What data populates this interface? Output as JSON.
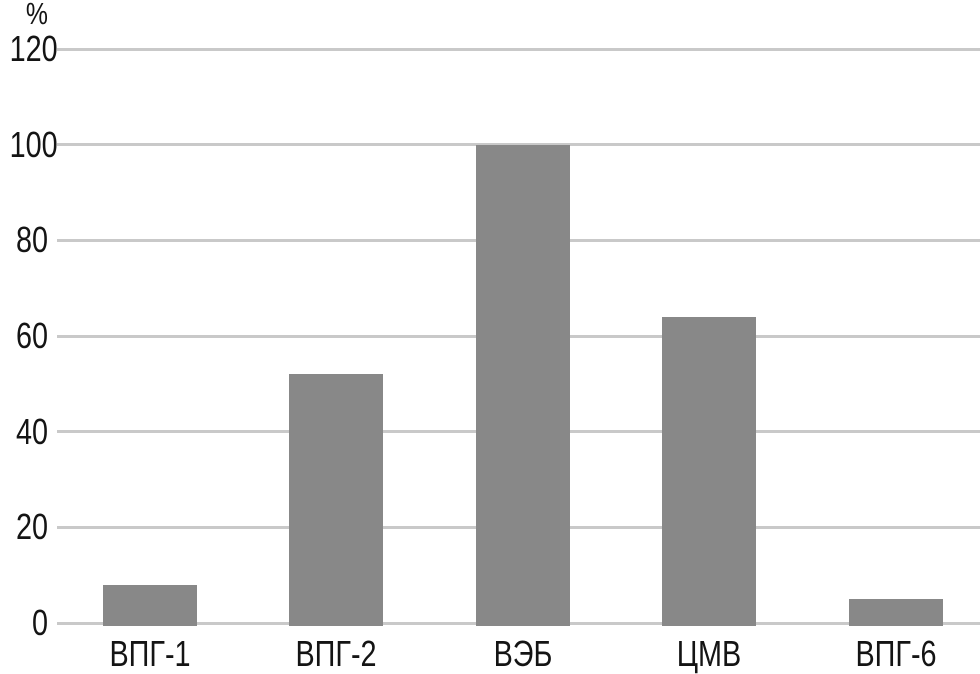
{
  "chart_data": {
    "type": "bar",
    "title": "",
    "xlabel": "",
    "ylabel": "%",
    "categories": [
      "ВПГ-1",
      "ВПГ-2",
      "ВЭБ",
      "ЦМВ",
      "ВПГ-6"
    ],
    "values": [
      8,
      52,
      100,
      64,
      5
    ],
    "yticks": [
      0,
      20,
      40,
      60,
      80,
      100,
      120
    ],
    "ylim": [
      0,
      120
    ],
    "grid": true,
    "legend": "none",
    "colors": {
      "bar": "#888888",
      "gridline": "#c9c9c9",
      "text": "#141414",
      "background": "#ffffff"
    }
  }
}
